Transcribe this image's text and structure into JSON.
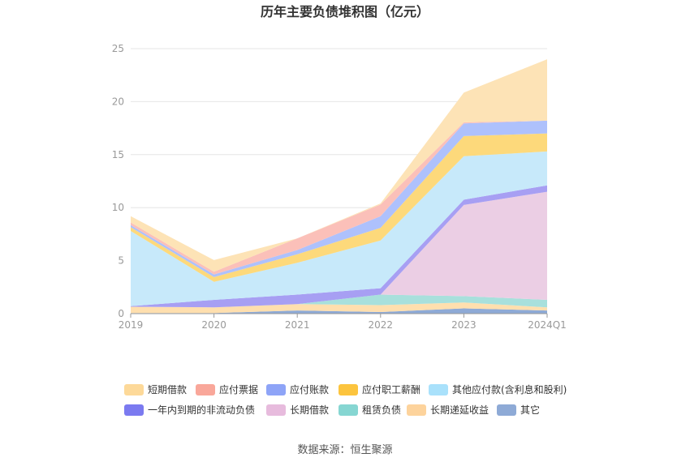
{
  "chart_data": {
    "type": "area",
    "stacked": true,
    "title": "历年主要负债堆积图（亿元）",
    "categories": [
      "2019",
      "2020",
      "2021",
      "2022",
      "2023",
      "2024Q1"
    ],
    "ylim": [
      0,
      25
    ],
    "yticks": [
      0,
      5,
      10,
      15,
      20,
      25
    ],
    "grid": true,
    "legend_position": "bottom",
    "series": [
      {
        "name": "其它",
        "color": "#8eaad6",
        "values": [
          0.05,
          0.05,
          0.3,
          0.15,
          0.5,
          0.3
        ]
      },
      {
        "name": "长期递延收益",
        "color": "#ffdfae",
        "values": [
          0.6,
          0.55,
          0.6,
          0.65,
          0.55,
          0.3
        ]
      },
      {
        "name": "租赁负债",
        "color": "#a8e0dc",
        "values": [
          0.0,
          0.0,
          0.0,
          1.0,
          0.6,
          0.7
        ]
      },
      {
        "name": "长期借款",
        "color": "#ebcee4",
        "values": [
          0.0,
          0.0,
          0.0,
          0.0,
          8.6,
          10.2
        ]
      },
      {
        "name": "一年内到期的非流动负债",
        "color": "#a79ff3",
        "values": [
          0.05,
          0.7,
          0.9,
          0.6,
          0.5,
          0.6
        ]
      },
      {
        "name": "其他应付款(含利息和股利)",
        "color": "#c7e9fa",
        "values": [
          7.1,
          1.7,
          3.0,
          4.5,
          4.1,
          3.2
        ]
      },
      {
        "name": "应付职工薪酬",
        "color": "#fdd97b",
        "values": [
          0.35,
          0.45,
          0.8,
          1.2,
          1.9,
          1.7
        ]
      },
      {
        "name": "应付账款",
        "color": "#aec1fc",
        "values": [
          0.2,
          0.25,
          0.4,
          1.1,
          1.2,
          1.2
        ]
      },
      {
        "name": "应付票据",
        "color": "#fbc0b9",
        "values": [
          0.25,
          0.25,
          1.1,
          1.1,
          0.1,
          0.0
        ]
      },
      {
        "name": "短期借款",
        "color": "#fde3b6",
        "values": [
          0.6,
          1.1,
          0.0,
          0.1,
          2.8,
          5.8
        ]
      }
    ],
    "legend": [
      {
        "name": "短期借款",
        "color": "#fdd999"
      },
      {
        "name": "应付票据",
        "color": "#f9a79a"
      },
      {
        "name": "应付账款",
        "color": "#8ea4f7"
      },
      {
        "name": "应付职工薪酬",
        "color": "#fcc43e"
      },
      {
        "name": "其他应付款(含利息和股利)",
        "color": "#a9e1fb"
      },
      {
        "name": "一年内到期的非流动负债",
        "color": "#7b7af0"
      },
      {
        "name": "长期借款",
        "color": "#e7bbdd"
      },
      {
        "name": "租赁负债",
        "color": "#86d6d2"
      },
      {
        "name": "长期递延收益",
        "color": "#fdd39c"
      },
      {
        "name": "其它",
        "color": "#8eaad6"
      }
    ]
  },
  "source": "数据来源：恒生聚源"
}
